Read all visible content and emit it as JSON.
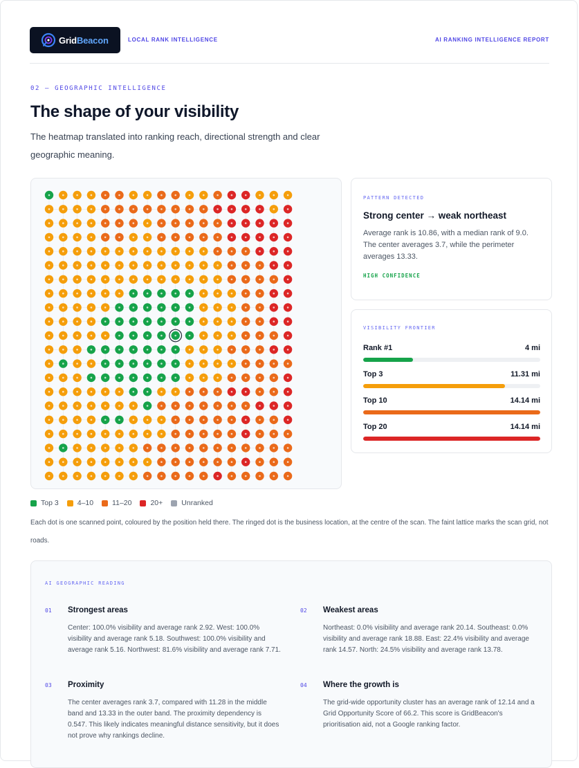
{
  "header": {
    "logo_text_1": "Grid",
    "logo_text_2": "Beacon",
    "tagline": "LOCAL RANK INTELLIGENCE",
    "report_title": "AI RANKING INTELLIGENCE REPORT"
  },
  "section": {
    "eyebrow": "02 — GEOGRAPHIC INTELLIGENCE",
    "title": "The shape of your visibility",
    "subtitle": "The heatmap translated into ranking reach, directional strength and clear geographic meaning."
  },
  "colors": {
    "top3": "#16a34a",
    "rank4_10": "#f59e0b",
    "rank11_20": "#ea6a1a",
    "rank20plus": "#dc2626",
    "unranked": "#9ca3af",
    "accent": "#4f46e5"
  },
  "heatmap": {
    "rows": [
      "ABBBCCBBCCBBCDDBBB",
      "BBBBCCCCCCCCDDDDBD",
      "BBBBCCCBCCCCCDDDDD",
      "BBBBCCBBCCCCCDDDDD",
      "BBBBBBBBBBBBCCCDDD",
      "BBBBBBBBBBBBBCCCDD",
      "BBBBBBBBBBBBBCCCCD",
      "BBBBBBAAAAABBBCCDD",
      "BBBBBAAAAAABBBCCDD",
      "BBBBAAAAAAABBBCCDD",
      "BBBBBAAAAAABBBCCCD",
      "BBBAAAAAAABBBCCCDD",
      "BABBAAAAAABBBBCCCC",
      "BBBAAAAAAABBBCCCCD",
      "BBBBBBAABBCCCDDCCD",
      "BBBBBBBACCCCCCCDDD",
      "BBBBAABBBCCCCCDCCD",
      "BBBBBBBBBCCCCCDCCC",
      "BABBBBBCCCCCCCCCCC",
      "BBBBBBBBCCCCCCDCCC",
      "BBBBBBBCCCCCDCCCCC"
    ],
    "center_row": 10,
    "center_col": 9,
    "legend_map": {
      "A": "top3",
      "B": "rank4_10",
      "C": "rank11_20",
      "D": "rank20plus",
      "E": "unranked"
    }
  },
  "pattern": {
    "eyebrow": "PATTERN DETECTED",
    "title": "Strong center → weak northeast",
    "body": "Average rank is 10.86, with a median rank of 9.0. The center averages 3.7, while the perimeter averages 13.33.",
    "confidence": "HIGH CONFIDENCE"
  },
  "frontier": {
    "eyebrow": "VISIBILITY FRONTIER",
    "rows": [
      {
        "label": "Rank #1",
        "value": "4 mi",
        "fraction": 0.28,
        "color": "#16a34a"
      },
      {
        "label": "Top 3",
        "value": "11.31 mi",
        "fraction": 0.8,
        "color": "#f59e0b"
      },
      {
        "label": "Top 10",
        "value": "14.14 mi",
        "fraction": 1.0,
        "color": "#ea6a1a"
      },
      {
        "label": "Top 20",
        "value": "14.14 mi",
        "fraction": 1.0,
        "color": "#dc2626"
      }
    ]
  },
  "legend": {
    "items": [
      {
        "label": "Top 3",
        "color": "#16a34a"
      },
      {
        "label": "4–10",
        "color": "#f59e0b"
      },
      {
        "label": "11–20",
        "color": "#ea6a1a"
      },
      {
        "label": "20+",
        "color": "#dc2626"
      },
      {
        "label": "Unranked",
        "color": "#9ca3af"
      }
    ],
    "caption": "Each dot is one scanned point, coloured by the position held there. The ringed dot is the business location, at the centre of the scan. The faint lattice marks the scan grid, not roads."
  },
  "reading": {
    "eyebrow": "AI GEOGRAPHIC READING",
    "items": [
      {
        "num": "01",
        "title": "Strongest areas",
        "body": "Center: 100.0% visibility and average rank 2.92. West: 100.0% visibility and average rank 5.18. Southwest: 100.0% visibility and average rank 5.16. Northwest: 81.6% visibility and average rank 7.71."
      },
      {
        "num": "02",
        "title": "Weakest areas",
        "body": "Northeast: 0.0% visibility and average rank 20.14. Southeast: 0.0% visibility and average rank 18.88. East: 22.4% visibility and average rank 14.57. North: 24.5% visibility and average rank 13.78."
      },
      {
        "num": "03",
        "title": "Proximity",
        "body": "The center averages rank 3.7, compared with 11.28 in the middle band and 13.33 in the outer band. The proximity dependency is 0.547. This likely indicates meaningful distance sensitivity, but it does not prove why rankings decline."
      },
      {
        "num": "04",
        "title": "Where the growth is",
        "body": "The grid-wide opportunity cluster has an average rank of 12.14 and a Grid Opportunity Score of 66.2. This score is GridBeacon's prioritisation aid, not a Google ranking factor."
      }
    ]
  }
}
